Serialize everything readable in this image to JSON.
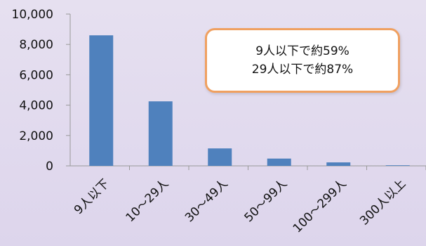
{
  "chart_data": {
    "type": "bar",
    "categories": [
      "9人以下",
      "10～29人",
      "30～49人",
      "50～99人",
      "100～299人",
      "300人以上"
    ],
    "values": [
      8600,
      4250,
      1150,
      480,
      230,
      40
    ],
    "ylim": [
      0,
      10000
    ],
    "yticks": [
      "0",
      "2,000",
      "4,000",
      "6,000",
      "8,000",
      "10,000"
    ],
    "bar_color": "#4f81bd",
    "grid": false,
    "annotations": [
      "9人以下で約59%",
      "29人以下で約87%"
    ]
  }
}
